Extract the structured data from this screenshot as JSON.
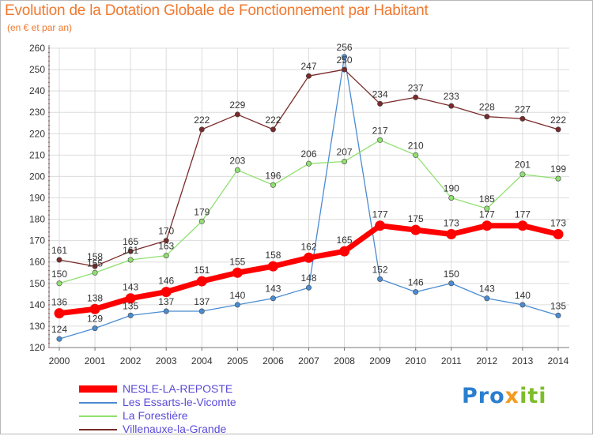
{
  "title": "Evolution de la Dotation Globale de Fonctionnement par Habitant",
  "subtitle": "(en € et par an)",
  "brand": {
    "part1": "Pro",
    "part2": "x",
    "part3": "iti"
  },
  "colors": {
    "title": "#f0782e",
    "legend_text": "#5a4bd8",
    "grid": "#dcdcdc"
  },
  "chart_data": {
    "type": "line",
    "x": [
      2000,
      2001,
      2002,
      2003,
      2004,
      2005,
      2006,
      2007,
      2008,
      2009,
      2010,
      2011,
      2012,
      2013,
      2014
    ],
    "ylim": [
      120,
      260
    ],
    "yticks": [
      120,
      130,
      140,
      150,
      160,
      170,
      180,
      190,
      200,
      210,
      220,
      230,
      240,
      250,
      260
    ],
    "grid": true,
    "series": [
      {
        "name": "NESLE-LA-REPOSTE",
        "color": "#ff0000",
        "emphasis": true,
        "values": [
          136,
          138,
          143,
          146,
          151,
          155,
          158,
          162,
          165,
          177,
          175,
          173,
          177,
          177,
          173
        ]
      },
      {
        "name": "Les Essarts-le-Vicomte",
        "color": "#4a8cd2",
        "emphasis": false,
        "values": [
          124,
          129,
          135,
          137,
          137,
          140,
          143,
          148,
          256,
          152,
          146,
          150,
          143,
          140,
          135
        ]
      },
      {
        "name": "La Forestière",
        "color": "#90e070",
        "emphasis": false,
        "values": [
          150,
          155,
          161,
          163,
          179,
          203,
          196,
          206,
          207,
          217,
          210,
          190,
          185,
          201,
          199
        ]
      },
      {
        "name": "Villenauxe-la-Grande",
        "color": "#7a2a2a",
        "emphasis": false,
        "values": [
          161,
          158,
          165,
          170,
          222,
          229,
          222,
          247,
          250,
          234,
          237,
          233,
          228,
          227,
          222
        ]
      }
    ]
  }
}
